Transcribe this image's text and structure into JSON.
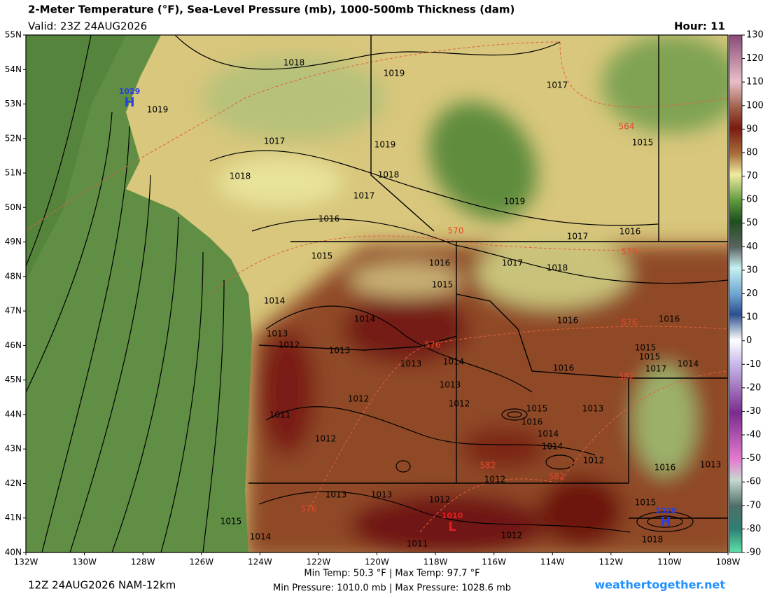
{
  "header": {
    "title": "2-Meter Temperature (°F), Sea-Level Pressure (mb), 1000-500mb Thickness (dam)",
    "valid": "Valid: 23Z 24AUG2026",
    "hour": "Hour: 11"
  },
  "map": {
    "lon_ticks": [
      {
        "value": -132,
        "label": "132W"
      },
      {
        "value": -130,
        "label": "130W"
      },
      {
        "value": -128,
        "label": "128W"
      },
      {
        "value": -126,
        "label": "126W"
      },
      {
        "value": -124,
        "label": "124W"
      },
      {
        "value": -122,
        "label": "122W"
      },
      {
        "value": -120,
        "label": "120W"
      },
      {
        "value": -118,
        "label": "118W"
      },
      {
        "value": -116,
        "label": "116W"
      },
      {
        "value": -114,
        "label": "114W"
      },
      {
        "value": -112,
        "label": "112W"
      },
      {
        "value": -110,
        "label": "110W"
      },
      {
        "value": -108,
        "label": "108W"
      }
    ],
    "lat_ticks": [
      {
        "value": 55,
        "label": "55N"
      },
      {
        "value": 54,
        "label": "54N"
      },
      {
        "value": 53,
        "label": "53N"
      },
      {
        "value": 52,
        "label": "52N"
      },
      {
        "value": 51,
        "label": "51N"
      },
      {
        "value": 50,
        "label": "50N"
      },
      {
        "value": 49,
        "label": "49N"
      },
      {
        "value": 48,
        "label": "48N"
      },
      {
        "value": 47,
        "label": "47N"
      },
      {
        "value": 46,
        "label": "46N"
      },
      {
        "value": 45,
        "label": "45N"
      },
      {
        "value": 44,
        "label": "44N"
      },
      {
        "value": 43,
        "label": "43N"
      },
      {
        "value": 42,
        "label": "42N"
      },
      {
        "value": 41,
        "label": "41N"
      },
      {
        "value": 40,
        "label": "40N"
      }
    ],
    "pressure_labels": [
      1018,
      1019,
      1017,
      1018,
      1017,
      1016,
      1015,
      1014,
      1013,
      1012,
      1013,
      1014,
      1015,
      1016,
      1017,
      1018,
      1017,
      1016,
      1019,
      1018,
      1019,
      1019,
      1017,
      1015,
      1016,
      1016,
      1015,
      1017,
      1014,
      1015,
      1016,
      1014,
      1013,
      1013,
      1012,
      1012,
      1011,
      1012,
      1015,
      1016,
      1014,
      1013,
      1014,
      1012,
      1016,
      1013,
      1012,
      1013,
      1013,
      1012,
      1015,
      1014,
      1011,
      1012,
      1015,
      1018
    ],
    "thickness_labels": [
      564,
      570,
      570,
      576,
      576,
      582,
      582,
      582,
      576
    ],
    "centers": [
      {
        "pressure": 1029,
        "symbol": "H"
      },
      {
        "pressure": 1028,
        "symbol": "H"
      },
      {
        "pressure": 1010,
        "symbol": "L"
      }
    ]
  },
  "colorbar": {
    "lim": [
      -90,
      130
    ],
    "ticks": [
      130,
      120,
      110,
      100,
      90,
      80,
      70,
      60,
      50,
      40,
      30,
      20,
      10,
      0,
      -10,
      -20,
      -30,
      -40,
      -50,
      -60,
      -70,
      -80,
      -90
    ]
  },
  "footer": {
    "run": "12Z 24AUG2026 NAM-12km",
    "temps": "Min Temp:  50.3 °F | Max Temp:  97.7 °F",
    "pressures": "Min Pressure: 1010.0 mb | Max Pressure: 1028.6 mb",
    "site": "weathertogether.net"
  }
}
